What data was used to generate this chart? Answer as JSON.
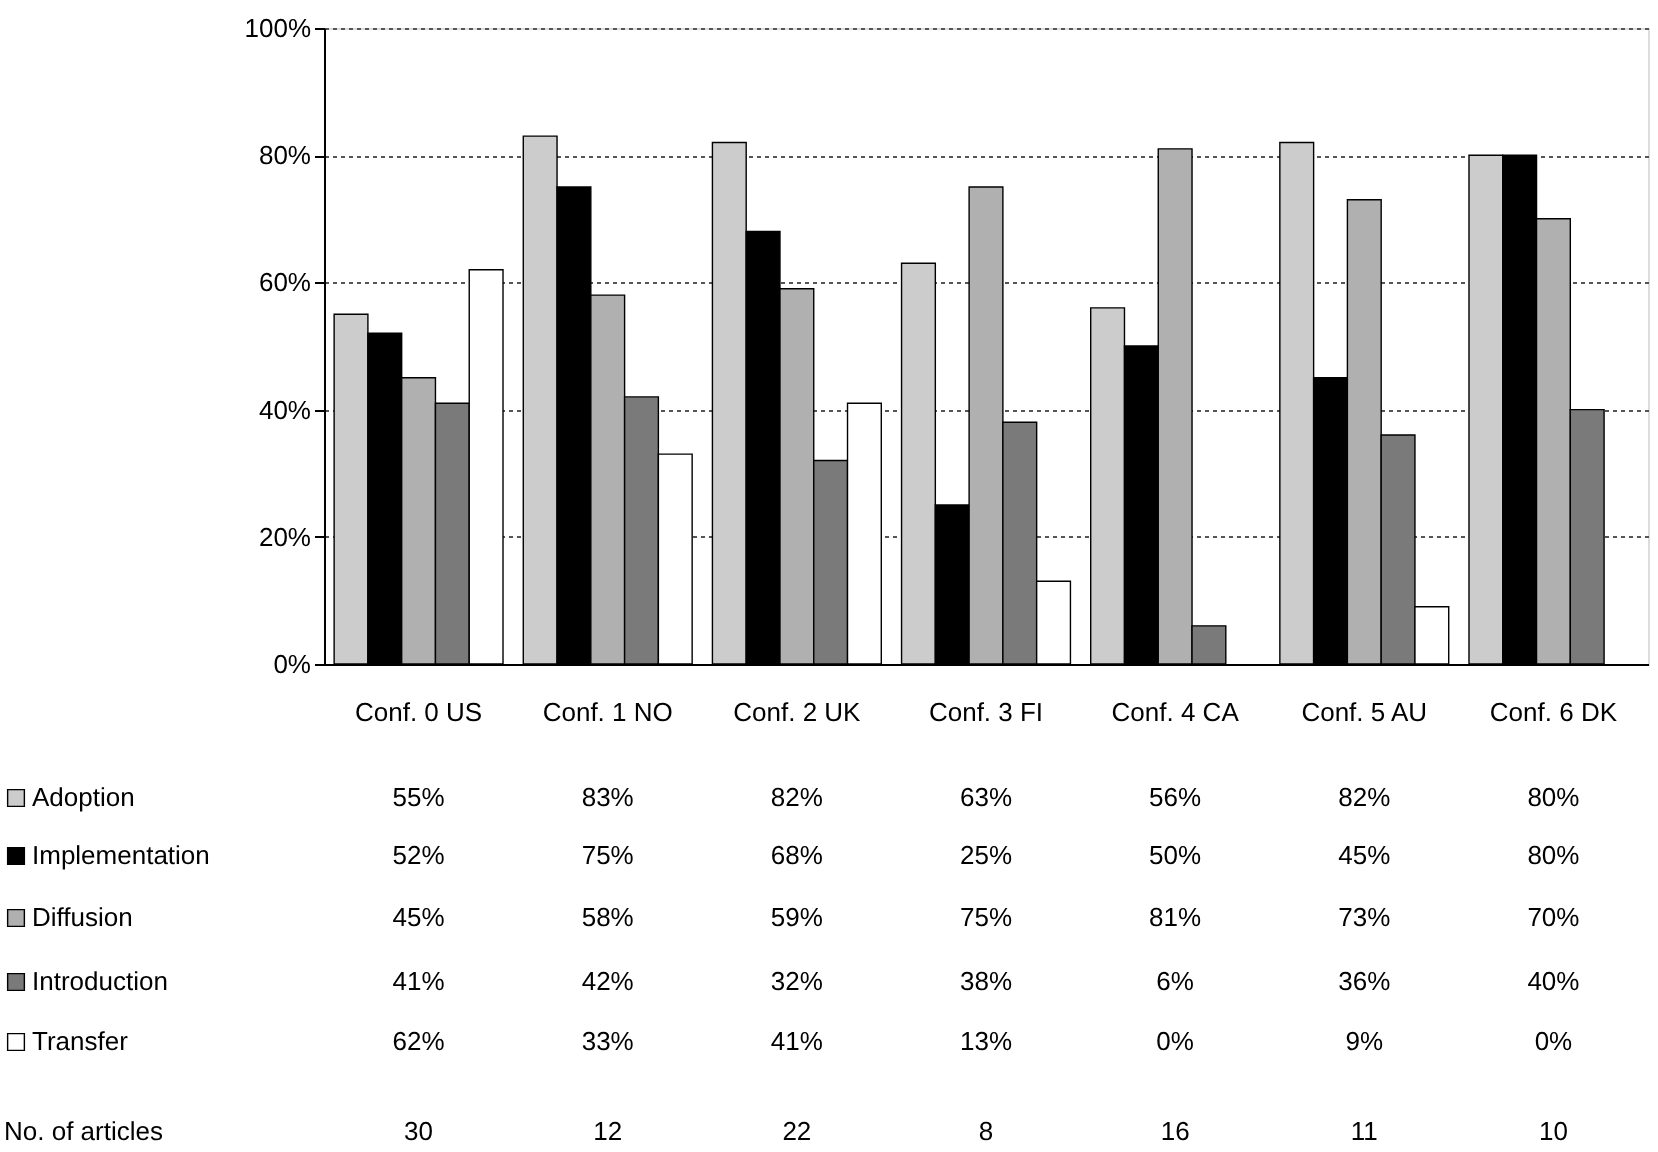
{
  "chart_data": {
    "type": "bar",
    "categories": [
      "Conf. 0 US",
      "Conf. 1 NO",
      "Conf. 2 UK",
      "Conf. 3 FI",
      "Conf. 4 CA",
      "Conf. 5 AU",
      "Conf. 6 DK"
    ],
    "series": [
      {
        "name": "Adoption",
        "color": "#cccccc",
        "values": [
          55,
          83,
          82,
          63,
          56,
          82,
          80
        ],
        "value_labels": [
          "55%",
          "83%",
          "82%",
          "63%",
          "56%",
          "82%",
          "80%"
        ]
      },
      {
        "name": "Implementation",
        "color": "#000000",
        "values": [
          52,
          75,
          68,
          25,
          50,
          45,
          80
        ],
        "value_labels": [
          "52%",
          "75%",
          "68%",
          "25%",
          "50%",
          "45%",
          "80%"
        ]
      },
      {
        "name": "Diffusion",
        "color": "#b0b0b0",
        "values": [
          45,
          58,
          59,
          75,
          81,
          73,
          70
        ],
        "value_labels": [
          "45%",
          "58%",
          "59%",
          "75%",
          "81%",
          "73%",
          "70%"
        ]
      },
      {
        "name": "Introduction",
        "color": "#7a7a7a",
        "values": [
          41,
          42,
          32,
          38,
          6,
          36,
          40
        ],
        "value_labels": [
          "41%",
          "42%",
          "32%",
          "38%",
          "6%",
          "36%",
          "40%"
        ]
      },
      {
        "name": "Transfer",
        "color": "#ffffff",
        "values": [
          62,
          33,
          41,
          13,
          0,
          9,
          0
        ],
        "value_labels": [
          "62%",
          "33%",
          "41%",
          "13%",
          "0%",
          "9%",
          "0%"
        ]
      }
    ],
    "ylim": [
      0,
      100
    ],
    "yticks": [
      {
        "value": 0,
        "label": "0%"
      },
      {
        "value": 20,
        "label": "20%"
      },
      {
        "value": 40,
        "label": "40%"
      },
      {
        "value": 60,
        "label": "60%"
      },
      {
        "value": 80,
        "label": "80%"
      },
      {
        "value": 100,
        "label": "100%"
      }
    ],
    "grid": "y",
    "legend": "bottom left",
    "annotations": [
      "No. of articles",
      "30",
      "12",
      "22",
      "8",
      "16",
      "11",
      "10"
    ]
  }
}
